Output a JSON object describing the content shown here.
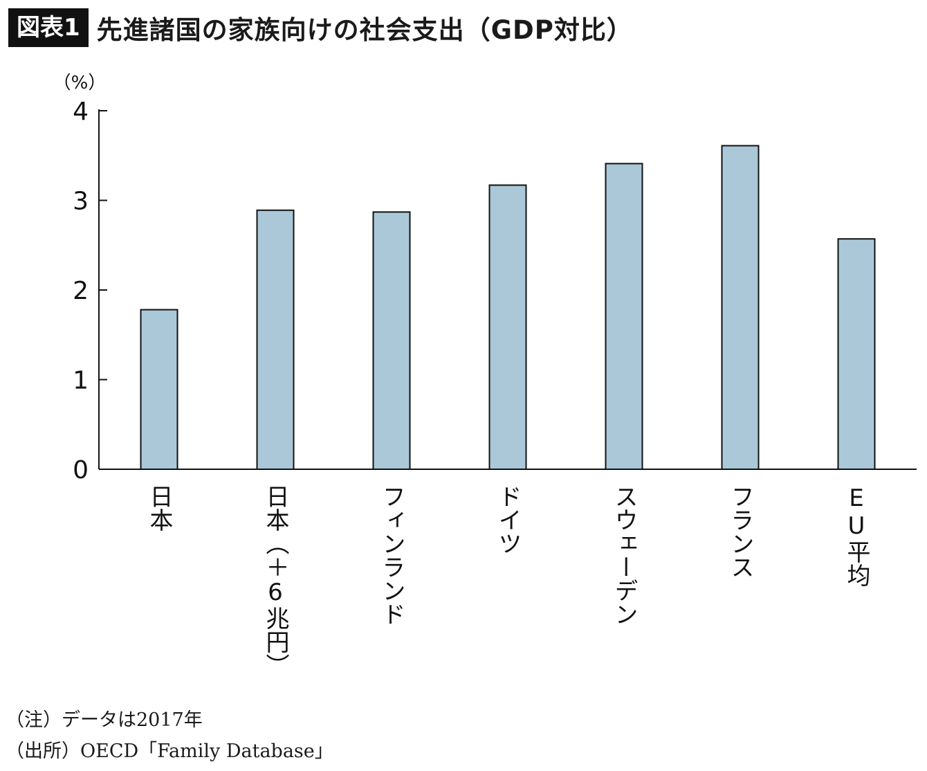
{
  "header": {
    "badge": "図表1",
    "title": "先進諸国の家族向けの社会支出（GDP対比）"
  },
  "chart_data": {
    "type": "bar",
    "title": "先進諸国の家族向けの社会支出（GDP対比）",
    "ylabel": "（%）",
    "xlabel": "",
    "ylim": [
      0,
      4
    ],
    "yticks": [
      "0",
      "1",
      "2",
      "3",
      "4"
    ],
    "categories": [
      "日本",
      "日本（＋6兆円）",
      "フィンランド",
      "ドイツ",
      "スウェーデン",
      "フランス",
      "EU平均"
    ],
    "values": [
      1.78,
      2.89,
      2.87,
      3.17,
      3.41,
      3.61,
      2.57
    ],
    "bar_color": "#aac8d8",
    "bar_stroke": "#111111",
    "grid": false
  },
  "notes": {
    "note": "（注）データは2017年",
    "source": "（出所）OECD「Family Database」"
  }
}
